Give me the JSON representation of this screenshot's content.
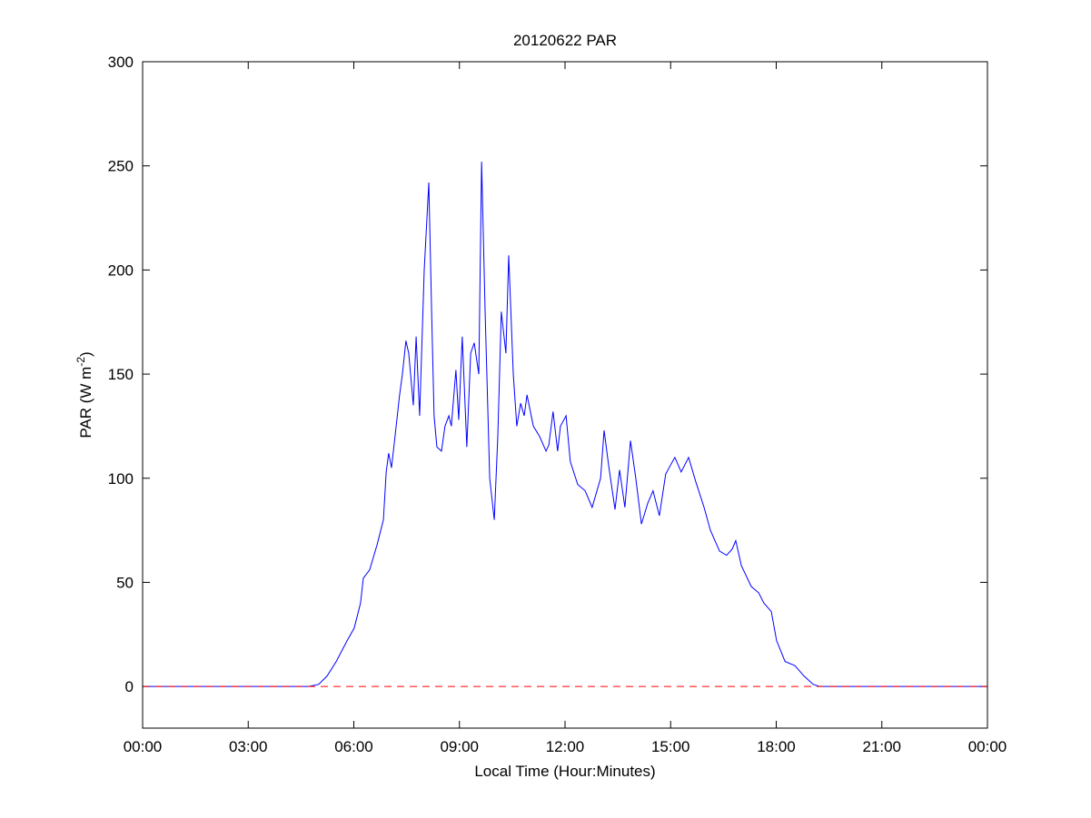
{
  "chart_data": {
    "type": "line",
    "title": "20120622 PAR",
    "xlabel": "Local Time (Hour:Minutes)",
    "ylabel_parts": [
      "PAR (W m",
      "-2",
      ")"
    ],
    "xlim": [
      0,
      24
    ],
    "ylim": [
      -20,
      300
    ],
    "xticks": [
      {
        "value": 0,
        "label": "00:00"
      },
      {
        "value": 3,
        "label": "03:00"
      },
      {
        "value": 6,
        "label": "06:00"
      },
      {
        "value": 9,
        "label": "09:00"
      },
      {
        "value": 12,
        "label": "12:00"
      },
      {
        "value": 15,
        "label": "15:00"
      },
      {
        "value": 18,
        "label": "18:00"
      },
      {
        "value": 21,
        "label": "21:00"
      },
      {
        "value": 24,
        "label": "00:00"
      }
    ],
    "yticks": [
      0,
      50,
      100,
      150,
      200,
      250,
      300
    ],
    "grid": false,
    "series": [
      {
        "color": "#0000ff",
        "dash": "solid",
        "x": [
          0,
          4.72,
          5.0,
          5.24,
          5.5,
          5.81,
          6.01,
          6.19,
          6.27,
          6.45,
          6.66,
          6.84,
          6.92,
          6.99,
          7.07,
          7.17,
          7.3,
          7.38,
          7.48,
          7.56,
          7.69,
          7.77,
          7.87,
          8.0,
          8.13,
          8.21,
          8.28,
          8.36,
          8.49,
          8.59,
          8.7,
          8.77,
          8.9,
          8.98,
          9.08,
          9.21,
          9.32,
          9.42,
          9.55,
          9.63,
          9.73,
          9.86,
          9.99,
          10.09,
          10.19,
          10.32,
          10.4,
          10.53,
          10.63,
          10.74,
          10.84,
          10.92,
          11.1,
          11.28,
          11.46,
          11.54,
          11.66,
          11.79,
          11.87,
          12.03,
          12.15,
          12.36,
          12.57,
          12.77,
          13.01,
          13.11,
          13.24,
          13.42,
          13.55,
          13.7,
          13.86,
          14.01,
          14.17,
          14.35,
          14.5,
          14.68,
          14.86,
          15.02,
          15.12,
          15.3,
          15.51,
          15.72,
          15.95,
          16.13,
          16.39,
          16.59,
          16.75,
          16.85,
          17.01,
          17.29,
          17.5,
          17.65,
          17.86,
          18.01,
          18.25,
          18.53,
          18.79,
          19.05,
          19.23,
          24
        ],
        "values": [
          0,
          0,
          1,
          5,
          12,
          22,
          28,
          40,
          52,
          56,
          68,
          80,
          103,
          112,
          105,
          120,
          140,
          150,
          166,
          160,
          135,
          168,
          130,
          200,
          242,
          180,
          130,
          115,
          113,
          125,
          130,
          125,
          152,
          128,
          168,
          115,
          160,
          165,
          150,
          252,
          180,
          100,
          80,
          120,
          180,
          160,
          207,
          150,
          125,
          136,
          130,
          140,
          125,
          120,
          113,
          116,
          132,
          113,
          125,
          130,
          108,
          97,
          94,
          86,
          100,
          123,
          106,
          85,
          104,
          86,
          118,
          100,
          78,
          88,
          94,
          82,
          102,
          107,
          110,
          103,
          110,
          98,
          86,
          75,
          65,
          63,
          66,
          70,
          58,
          48,
          45,
          40,
          36,
          22,
          12,
          10,
          5,
          1,
          0,
          0
        ]
      },
      {
        "color": "#ff0000",
        "dash": "dashed",
        "x": [
          0,
          24
        ],
        "values": [
          0,
          0
        ]
      }
    ]
  }
}
